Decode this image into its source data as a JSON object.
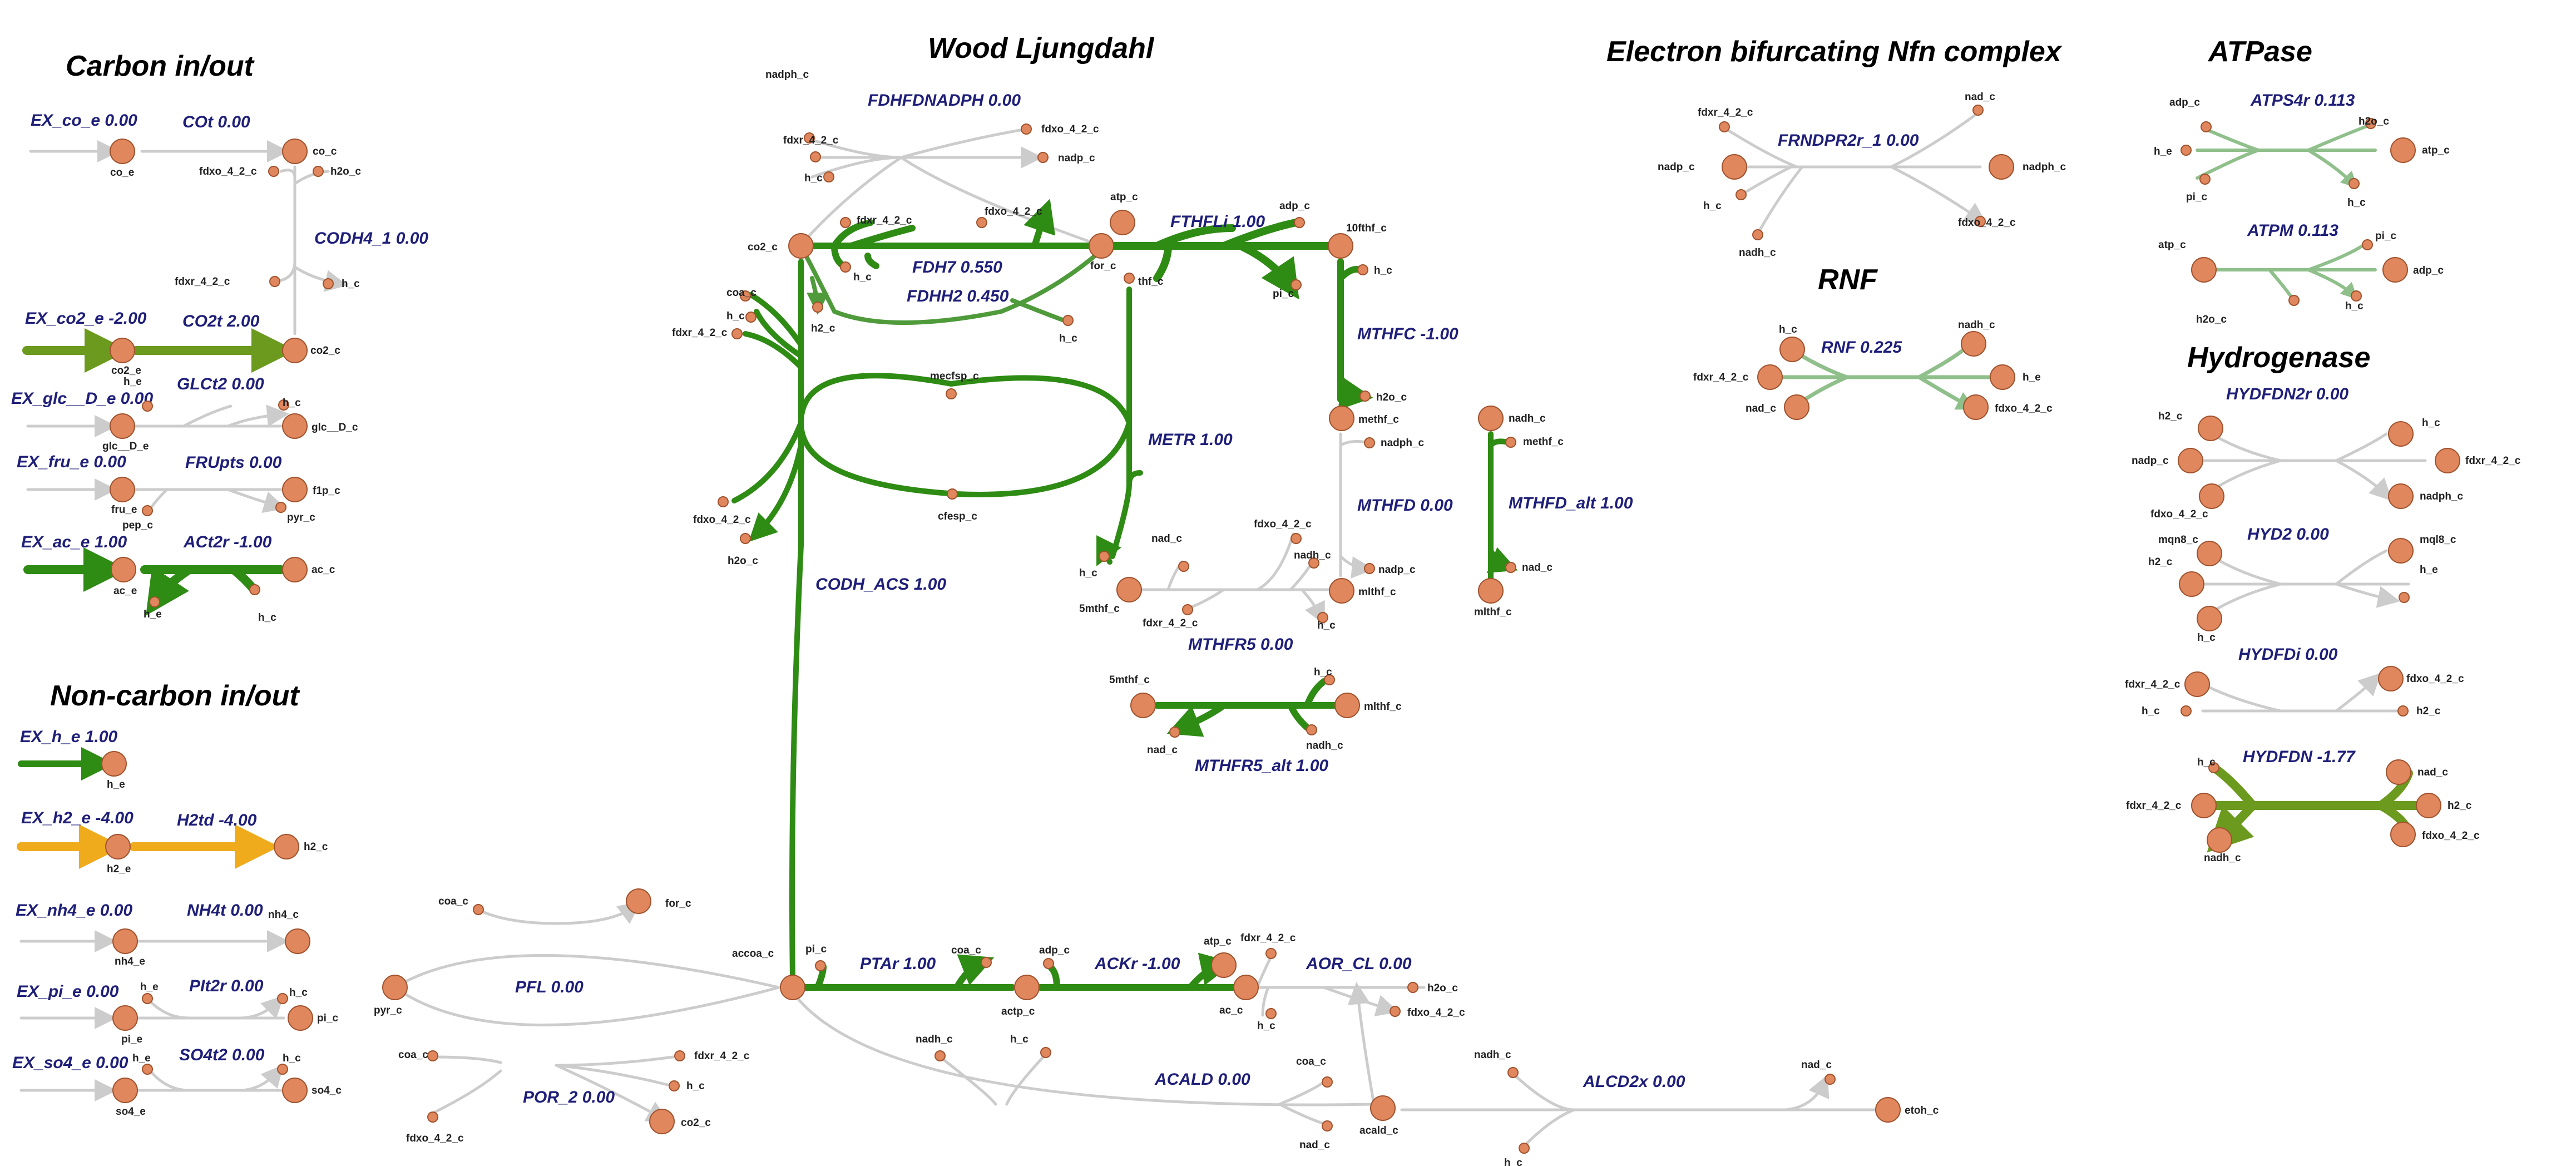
{
  "titles": {
    "carbon": "Carbon in/out",
    "noncarbon": "Non-carbon in/out",
    "wood": "Wood Ljungdahl",
    "nfn": "Electron bifurcating Nfn complex",
    "rnf": "RNF",
    "atpase": "ATPase",
    "hydrogenase": "Hydrogenase"
  },
  "colors": {
    "inactive": "#cccccc",
    "active": "#2e8b14",
    "active_med": "#4f9a3a",
    "active_light": "#8fbf8a",
    "olive": "#6b9a1e",
    "orange": "#efab1c",
    "metabolite_fill": "#e0875e"
  },
  "reactions": {
    "ex_co": "EX_co_e 0.00",
    "cot": "COt 0.00",
    "codh4": "CODH4_1 0.00",
    "ex_co2": "EX_co2_e -2.00",
    "co2t": "CO2t 2.00",
    "ex_glc": "EX_glc__D_e 0.00",
    "glct2": "GLCt2 0.00",
    "ex_fru": "EX_fru_e 0.00",
    "frupts": "FRUpts 0.00",
    "ex_ac": "EX_ac_e 1.00",
    "act2r": "ACt2r -1.00",
    "ex_h": "EX_h_e 1.00",
    "ex_h2": "EX_h2_e -4.00",
    "h2td": "H2td -4.00",
    "ex_nh4": "EX_nh4_e 0.00",
    "nh4t": "NH4t 0.00",
    "ex_pi": "EX_pi_e 0.00",
    "pit2r": "PIt2r 0.00",
    "ex_so4": "EX_so4_e 0.00",
    "so4t2": "SO4t2 0.00",
    "fdhnadph": "FDHFDNADPH 0.00",
    "fdh7": "FDH7 0.550",
    "fdhh2": "FDHH2 0.450",
    "fthfli": "FTHFLi 1.00",
    "mthfc": "MTHFC -1.00",
    "metr": "METR 1.00",
    "mthfd": "MTHFD 0.00",
    "mthfd_alt": "MTHFD_alt 1.00",
    "mthfr5": "MTHFR5 0.00",
    "mthfr5_alt": "MTHFR5_alt 1.00",
    "codh_acs": "CODH_ACS 1.00",
    "pfl": "PFL 0.00",
    "por2": "POR_2 0.00",
    "ptar": "PTAr 1.00",
    "ackr": "ACKr -1.00",
    "aor": "AOR_CL 0.00",
    "acald": "ACALD 0.00",
    "alcd2x": "ALCD2x 0.00",
    "frndpr": "FRNDPR2r_1 0.00",
    "rnf": "RNF 0.225",
    "atps4r": "ATPS4r 0.113",
    "atpm": "ATPM 0.113",
    "hydfdn2r": "HYDFDN2r 0.00",
    "hyd2": "HYD2 0.00",
    "hydfdi": "HYDFDi 0.00",
    "hydfdn": "HYDFDN -1.77"
  },
  "metabolites": {
    "co_e": "co_e",
    "co_c": "co_c",
    "fdxo_4_2_c": "fdxo_4_2_c",
    "h2o_c": "h2o_c",
    "fdxr_4_2_c": "fdxr_4_2_c",
    "h_c": "h_c",
    "co2_e": "co2_e",
    "co2_c": "co2_c",
    "h_e": "h_e",
    "glc__D_e": "glc__D_e",
    "glc__D_c": "glc__D_c",
    "fru_e": "fru_e",
    "pep_c": "pep_c",
    "f1p_c": "f1p_c",
    "pyr_c": "pyr_c",
    "ac_e": "ac_e",
    "ac_c": "ac_c",
    "h2_e": "h2_e",
    "h2_c": "h2_c",
    "nh4_e": "nh4_e",
    "nh4_c": "nh4_c",
    "pi_e": "pi_e",
    "pi_c": "pi_c",
    "so4_e": "so4_e",
    "so4_c": "so4_c",
    "nadph_c": "nadph_c",
    "nadp_c": "nadp_c",
    "for_c": "for_c",
    "atp_c": "atp_c",
    "adp_c": "adp_c",
    "thf_c": "thf_c",
    "10fthf_c": "10fthf_c",
    "coa_c": "coa_c",
    "mecfsp_c": "mecfsp_c",
    "cfesp_c": "cfesp_c",
    "methf_c": "methf_c",
    "nadh_c": "nadh_c",
    "nad_c": "nad_c",
    "mlthf_c": "mlthf_c",
    "5mthf_c": "5mthf_c",
    "accoa_c": "accoa_c",
    "actp_c": "actp_c",
    "acald_c": "acald_c",
    "etoh_c": "etoh_c",
    "mql8_c": "mql8_c",
    "mqn8_c": "mqn8_c"
  }
}
